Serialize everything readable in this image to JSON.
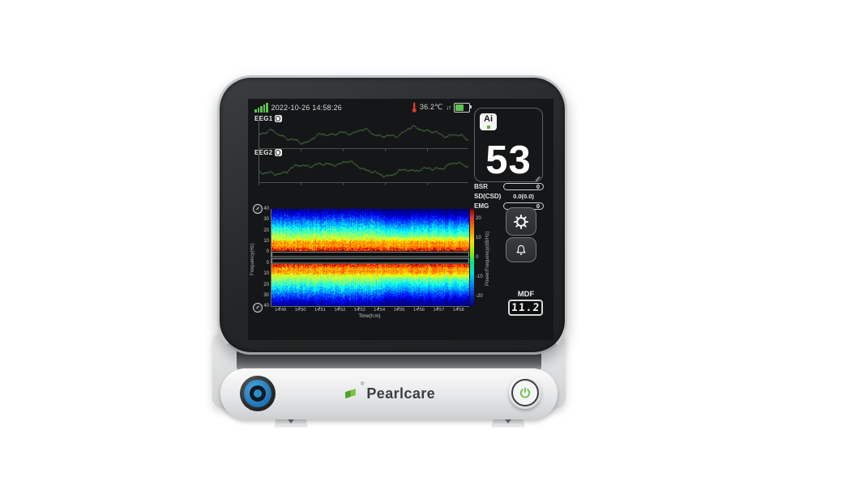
{
  "status_bar": {
    "datetime": "2022-10-26 14:58:26",
    "temperature": "36.2℃",
    "charge_arrows": "↓↑",
    "battery_percent": 62,
    "signal_color": "#5cc24e"
  },
  "eeg_channels": [
    {
      "label": "EEG1"
    },
    {
      "label": "EEG2"
    }
  ],
  "index_panel": {
    "badge": "Ai",
    "value": "53"
  },
  "metrics": {
    "bsr_label": "BSR",
    "bsr_value": "0",
    "sd_label": "SD(CSD)",
    "sd_value": "0.0(0.0)",
    "emg_label": "EMG",
    "emg_value": "0"
  },
  "mdf": {
    "label": "MDF",
    "value": "11.2"
  },
  "front_panel": {
    "brand": "Pearlcare",
    "brand_mark": "®"
  },
  "icons": {
    "signal": "signal-bars",
    "thermometer": "thermometer",
    "battery": "battery",
    "channel_badge": "filter-badge",
    "settings": "gear",
    "alarm": "bell",
    "power": "power-symbol",
    "logo": "green-leaf"
  },
  "colors": {
    "accent_green": "#5cc24e",
    "eeg_trace": "#57814f",
    "knob_blue": "#2e8ccc",
    "alert_red": "#e03a2f"
  },
  "chart_data": [
    {
      "type": "line",
      "title": "Raw EEG traces",
      "series": [
        {
          "name": "EEG1"
        },
        {
          "name": "EEG2"
        }
      ],
      "xlabel": "",
      "ylabel": "",
      "note": "two unlabeled continuous EEG waveforms, dark green on black, L-shaped axes with unlabeled ticks"
    },
    {
      "type": "heatmap",
      "subtype": "density-spectral-array",
      "panels": 2,
      "xlabel": "Time(h:m)",
      "ylabel": "Frequency(Hz)",
      "x_ticks": [
        "14:49",
        "14:50",
        "14:51",
        "14:52",
        "14:53",
        "14:54",
        "14:55",
        "14:56",
        "14:57",
        "14:58"
      ],
      "y_ticks_top_panel": [
        "40",
        "30",
        "20",
        "10",
        "0"
      ],
      "y_ticks_bottom_panel": [
        "0",
        "10",
        "20",
        "30",
        "40"
      ],
      "colorbar_label": "Power/Frequency(dB/Hz)",
      "colorbar_ticks": [
        "20",
        "10",
        "0",
        "-10",
        "-20"
      ],
      "colormap": "jet",
      "value_range_db": [
        -25,
        25
      ],
      "power_profile_db_by_freq": {
        "0": 16,
        "10": 6,
        "20": -4,
        "30": -14,
        "40": -24
      },
      "features": "mirrored dual-channel spectrogram; bright yellow band 0-12 Hz with red speckles near 0 Hz at inner edges, thin brighter yellow streak near 8-9 Hz, fading to dark blue at 40 Hz; slightly darker/smoother after 14:53"
    }
  ]
}
